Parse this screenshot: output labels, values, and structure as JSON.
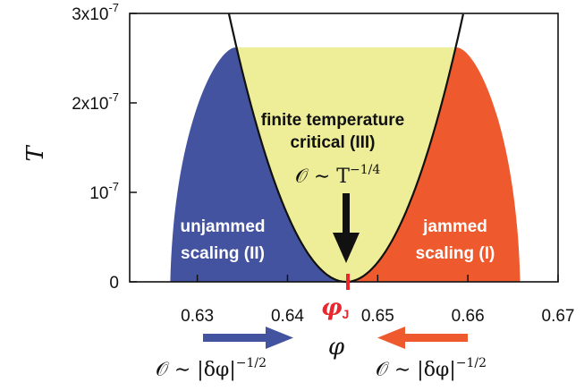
{
  "colors": {
    "unjammed": "#4453a0",
    "jammed": "#ee5a2e",
    "critical": "#eeee99",
    "phi_j": "#e8282c",
    "axis": "#111111"
  },
  "axes": {
    "ylabel": "T",
    "xlabel": "φ",
    "x_ticks": [
      "0.63",
      "0.64",
      "0.65",
      "0.66",
      "0.67"
    ],
    "y_ticks": [
      {
        "mantissa": "0",
        "exp": ""
      },
      {
        "mantissa": "10",
        "exp": "-7"
      },
      {
        "mantissa": "2x10",
        "exp": "-7"
      },
      {
        "mantissa": "3x10",
        "exp": "-7"
      }
    ]
  },
  "regions": {
    "critical": {
      "line1": "finite temperature",
      "line2": "critical (III)"
    },
    "unjammed": {
      "line1": "unjammed",
      "line2": "scaling (II)"
    },
    "jammed": {
      "line1": "jammed",
      "line2": "scaling (I)"
    }
  },
  "phi_j": {
    "symbol": "φ",
    "subscript": "J"
  },
  "formulas": {
    "top": {
      "base": "𝒪 ∼ T",
      "exp": "−1/4"
    },
    "left": {
      "base": "𝒪 ∼ |δφ|",
      "exp": "−1/2"
    },
    "right": {
      "base": "𝒪 ∼ |δφ|",
      "exp": "−1/2"
    }
  },
  "chart_data": {
    "type": "area",
    "x_range": [
      0.6225,
      0.67
    ],
    "y_range": [
      0,
      3e-07
    ],
    "phi_J": 0.6465,
    "x_ticks": [
      0.63,
      0.64,
      0.65,
      0.66,
      0.67
    ],
    "y_ticks": [
      0,
      1e-07,
      2e-07,
      3e-07
    ],
    "crossover_T_max": 2.62e-07,
    "unjammed_region_phi_range": [
      0.627,
      0.6465
    ],
    "jammed_region_phi_range": [
      0.6465,
      0.6658
    ]
  }
}
